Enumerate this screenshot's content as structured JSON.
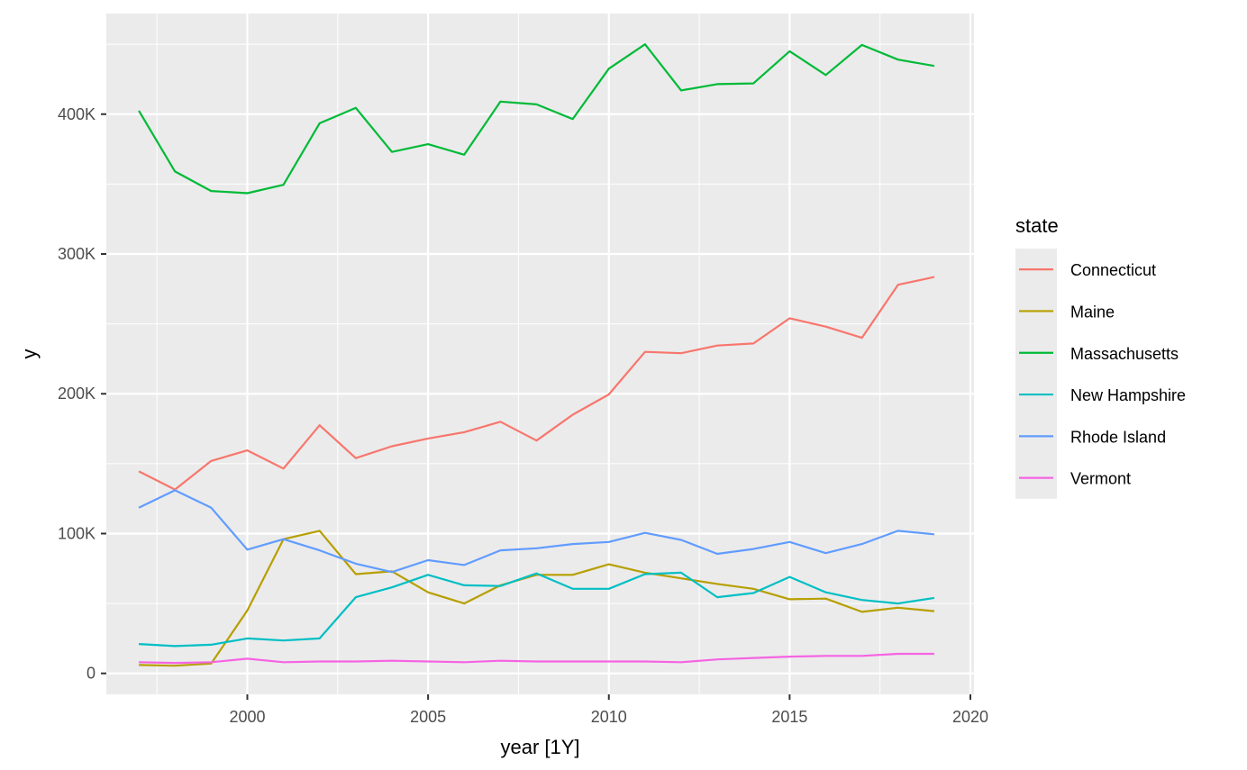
{
  "chart_data": {
    "type": "line",
    "xlabel": "year [1Y]",
    "ylabel": "y",
    "xlim": [
      1996.1,
      2020.1
    ],
    "ylim": [
      -15000,
      472000
    ],
    "x_ticks": [
      2000,
      2005,
      2010,
      2015,
      2020
    ],
    "x_tick_labels": [
      "2000",
      "2005",
      "2010",
      "2015",
      "2020"
    ],
    "y_ticks": [
      0,
      100000,
      200000,
      300000,
      400000
    ],
    "y_tick_labels": [
      "0",
      "100K",
      "200K",
      "300K",
      "400K"
    ],
    "grid": true,
    "legend": {
      "title": "state",
      "position": "right"
    },
    "x": [
      1997,
      1998,
      1999,
      2000,
      2001,
      2002,
      2003,
      2004,
      2005,
      2006,
      2007,
      2008,
      2009,
      2010,
      2011,
      2012,
      2013,
      2014,
      2015,
      2016,
      2017,
      2018,
      2019
    ],
    "series": [
      {
        "name": "Connecticut",
        "color": "#F8766D",
        "values": [
          144500,
          131500,
          152000,
          159500,
          146500,
          177500,
          154000,
          162500,
          168000,
          172500,
          180000,
          166500,
          185000,
          199500,
          230000,
          229000,
          234500,
          236000,
          254000,
          248000,
          240000,
          278000,
          283500
        ]
      },
      {
        "name": "Maine",
        "color": "#B79F00",
        "values": [
          6000,
          5500,
          7000,
          45000,
          96000,
          102000,
          71000,
          73000,
          58000,
          50000,
          63000,
          70500,
          70500,
          78000,
          72000,
          68000,
          64000,
          60500,
          53000,
          53500,
          44000,
          47000,
          44500
        ]
      },
      {
        "name": "Massachusetts",
        "color": "#00BA38",
        "values": [
          402500,
          359000,
          345000,
          343500,
          349500,
          393500,
          404500,
          373000,
          378500,
          371000,
          409000,
          407000,
          396500,
          432500,
          450000,
          417000,
          421500,
          422000,
          445000,
          428000,
          449500,
          439000,
          434500
        ]
      },
      {
        "name": "New Hampshire",
        "color": "#00BFC4",
        "values": [
          21000,
          19500,
          20500,
          25000,
          23500,
          25000,
          54500,
          61500,
          70500,
          63000,
          62500,
          71500,
          60500,
          60500,
          71000,
          72000,
          54500,
          57500,
          69000,
          58000,
          52500,
          50000,
          54000
        ]
      },
      {
        "name": "Rhode Island",
        "color": "#619CFF",
        "values": [
          118500,
          131000,
          118500,
          88500,
          96000,
          88000,
          78500,
          72500,
          81000,
          77500,
          88000,
          89500,
          92500,
          94000,
          100500,
          95500,
          85500,
          89000,
          94000,
          86000,
          92500,
          102000,
          99500
        ]
      },
      {
        "name": "Vermont",
        "color": "#F564E3",
        "values": [
          8000,
          7500,
          8000,
          10500,
          8000,
          8500,
          8500,
          9000,
          8500,
          8000,
          9000,
          8500,
          8500,
          8500,
          8500,
          8000,
          10000,
          11000,
          12000,
          12500,
          12500,
          14000,
          14000
        ]
      }
    ]
  }
}
